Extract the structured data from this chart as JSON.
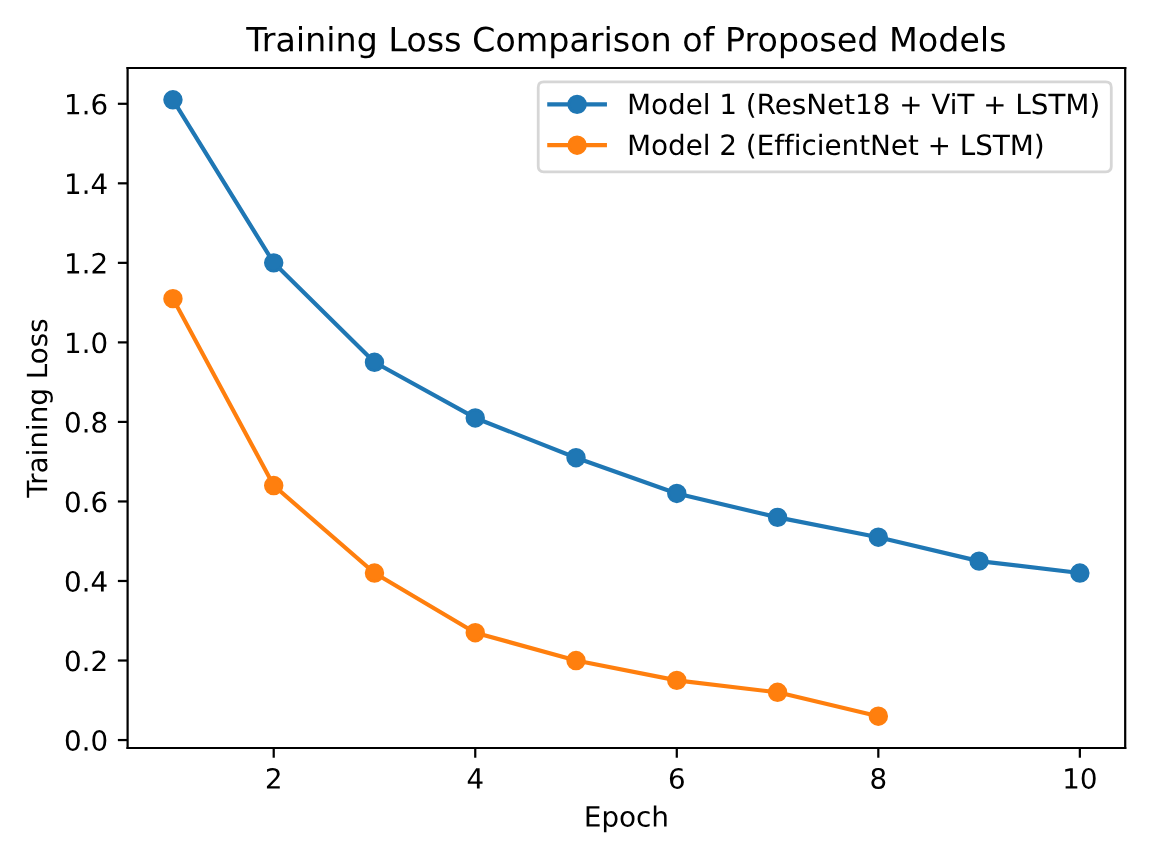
{
  "chart_data": {
    "type": "line",
    "title": "Training Loss Comparison of Proposed Models",
    "xlabel": "Epoch",
    "ylabel": "Training Loss",
    "series": [
      {
        "name": "Model 1 (ResNet18 + ViT + LSTM)",
        "color": "#1f77b4",
        "x": [
          1,
          2,
          3,
          4,
          5,
          6,
          7,
          8,
          9,
          10
        ],
        "values": [
          1.61,
          1.2,
          0.95,
          0.81,
          0.71,
          0.62,
          0.56,
          0.51,
          0.45,
          0.42
        ]
      },
      {
        "name": "Model 2 (EfficientNet + LSTM)",
        "color": "#ff7f0e",
        "x": [
          1,
          2,
          3,
          4,
          5,
          6,
          7,
          8
        ],
        "values": [
          1.11,
          0.64,
          0.42,
          0.27,
          0.2,
          0.15,
          0.12,
          0.06
        ]
      }
    ],
    "xlim": [
      0.55,
      10.45
    ],
    "xticks": [
      2,
      4,
      6,
      8,
      10
    ],
    "ylim": [
      -0.02,
      1.69
    ],
    "yticks": [
      {
        "value": 0,
        "label": "0.0"
      },
      0.2,
      0.4,
      0.6,
      0.8,
      {
        "value": 1,
        "label": "1.0"
      },
      1.2,
      1.4,
      1.6
    ],
    "marker": "circle",
    "line_style": "solid",
    "grid": false,
    "legend": "top right"
  }
}
